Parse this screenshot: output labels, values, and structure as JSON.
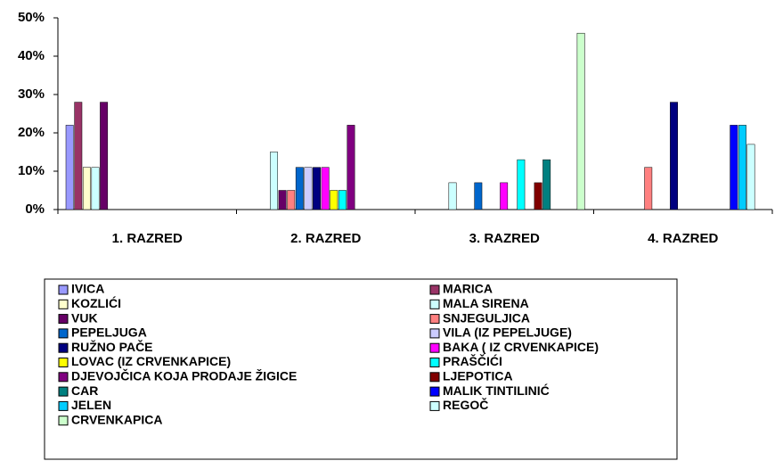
{
  "chart_data": {
    "type": "bar",
    "categories": [
      "1. RAZRED",
      "2. RAZRED",
      "3. RAZRED",
      "4. RAZRED"
    ],
    "ylim": [
      0,
      50
    ],
    "yticks": [
      {
        "value": 0,
        "label": "0%"
      },
      {
        "value": 10,
        "label": "10%"
      },
      {
        "value": 20,
        "label": "20%"
      },
      {
        "value": 30,
        "label": "30%"
      },
      {
        "value": 40,
        "label": "40%"
      },
      {
        "value": 50,
        "label": "50%"
      }
    ],
    "series": [
      {
        "name": "IVICA",
        "color": "#9999ff",
        "values": [
          22,
          0,
          0,
          0
        ]
      },
      {
        "name": "MARICA",
        "color": "#993366",
        "values": [
          28,
          0,
          0,
          0
        ]
      },
      {
        "name": "KOZLIĆI",
        "color": "#ffffcc",
        "values": [
          11,
          0,
          0,
          0
        ]
      },
      {
        "name": "MALA SIRENA",
        "color": "#ccffff",
        "values": [
          11,
          15,
          7,
          0
        ]
      },
      {
        "name": "VUK",
        "color": "#660066",
        "values": [
          28,
          5,
          0,
          0
        ]
      },
      {
        "name": "SNJEGULJICA",
        "color": "#ff8080",
        "values": [
          0,
          5,
          0,
          11
        ]
      },
      {
        "name": "PEPELJUGA",
        "color": "#0066cc",
        "values": [
          0,
          11,
          7,
          0
        ]
      },
      {
        "name": "VILA (IZ PEPELJUGE)",
        "color": "#ccccff",
        "values": [
          0,
          11,
          0,
          0
        ]
      },
      {
        "name": "RUŽNO PAČE",
        "color": "#000080",
        "values": [
          0,
          11,
          0,
          28
        ]
      },
      {
        "name": "BAKA ( IZ CRVENKAPICE)",
        "color": "#ff00ff",
        "values": [
          0,
          11,
          7,
          0
        ]
      },
      {
        "name": "LOVAC (IZ CRVENKAPICE)",
        "color": "#ffff00",
        "values": [
          0,
          5,
          0,
          0
        ]
      },
      {
        "name": "PRAŠČIĆI",
        "color": "#00ffff",
        "values": [
          0,
          5,
          13,
          0
        ]
      },
      {
        "name": "DJEVOJČICA KOJA PRODAJE ŽIGICE",
        "color": "#800080",
        "values": [
          0,
          22,
          0,
          0
        ]
      },
      {
        "name": "LJEPOTICA",
        "color": "#800000",
        "values": [
          0,
          0,
          7,
          0
        ]
      },
      {
        "name": "CAR",
        "color": "#008080",
        "values": [
          0,
          0,
          13,
          0
        ]
      },
      {
        "name": "MALIK TINTILINIĆ",
        "color": "#0000ff",
        "values": [
          0,
          0,
          0,
          22
        ]
      },
      {
        "name": "JELEN",
        "color": "#00ccff",
        "values": [
          0,
          0,
          0,
          22
        ]
      },
      {
        "name": "REGOČ",
        "color": "#ccffff",
        "values": [
          0,
          0,
          0,
          17
        ]
      },
      {
        "name": "CRVENKAPICA",
        "color": "#ccffcc",
        "values": [
          0,
          0,
          46,
          0
        ]
      }
    ]
  }
}
